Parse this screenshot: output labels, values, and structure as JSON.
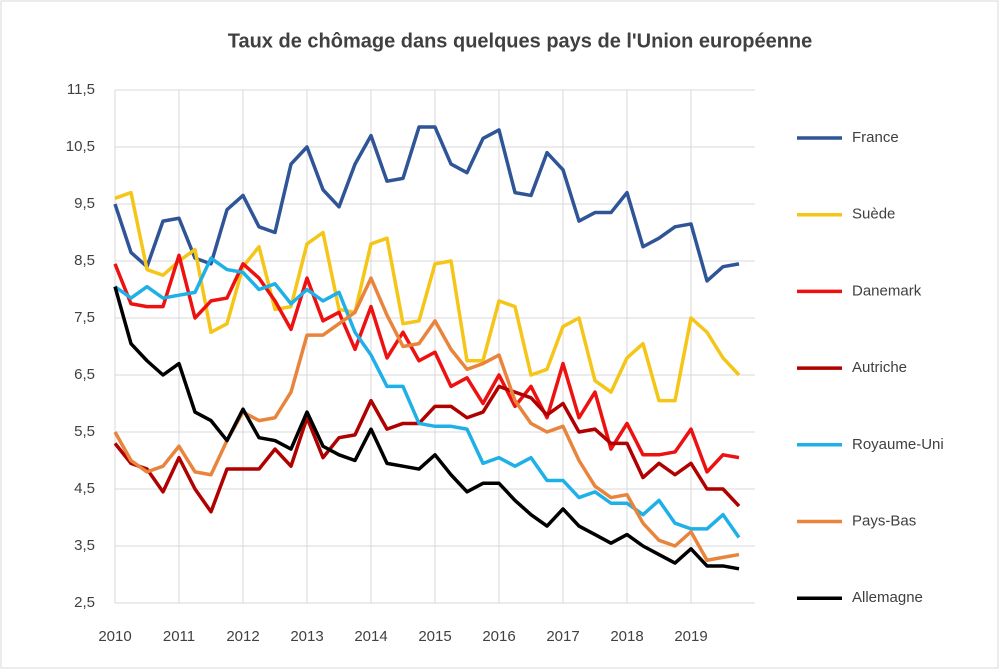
{
  "chart_data": {
    "type": "line",
    "title": "Taux de chômage dans quelques pays de l'Union européenne",
    "x": [
      2010,
      2010.25,
      2010.5,
      2010.75,
      2011,
      2011.25,
      2011.5,
      2011.75,
      2012,
      2012.25,
      2012.5,
      2012.75,
      2013,
      2013.25,
      2013.5,
      2013.75,
      2014,
      2014.25,
      2014.5,
      2014.75,
      2015,
      2015.25,
      2015.5,
      2015.75,
      2016,
      2016.25,
      2016.5,
      2016.75,
      2017,
      2017.25,
      2017.5,
      2017.75,
      2018,
      2018.25,
      2018.5,
      2018.75,
      2019,
      2019.25,
      2019.5,
      2019.75
    ],
    "xlim": [
      2010,
      2020
    ],
    "xticks": [
      2010,
      2011,
      2012,
      2013,
      2014,
      2015,
      2016,
      2017,
      2018,
      2019
    ],
    "ylim": [
      2.5,
      11.5
    ],
    "yticks": [
      {
        "value": 2.5,
        "label": "2,5"
      },
      {
        "value": 3.5,
        "label": "3,5"
      },
      {
        "value": 4.5,
        "label": "4,5"
      },
      {
        "value": 5.5,
        "label": "5,5"
      },
      {
        "value": 6.5,
        "label": "6,5"
      },
      {
        "value": 7.5,
        "label": "7,5"
      },
      {
        "value": 8.5,
        "label": "8,5"
      },
      {
        "value": 9.5,
        "label": "9,5"
      },
      {
        "value": 10.5,
        "label": "10,5"
      },
      {
        "value": 11.5,
        "label": "11,5"
      }
    ],
    "grid": true,
    "legend": "right",
    "series": [
      {
        "name": "France",
        "color": "#2f5597",
        "values": [
          9.5,
          8.65,
          8.4,
          9.2,
          9.25,
          8.55,
          8.45,
          9.4,
          9.65,
          9.1,
          9.0,
          10.2,
          10.5,
          9.75,
          9.45,
          10.2,
          10.7,
          9.9,
          9.95,
          10.85,
          10.85,
          10.2,
          10.05,
          10.65,
          10.8,
          9.7,
          9.65,
          10.4,
          10.1,
          9.2,
          9.35,
          9.35,
          9.7,
          8.75,
          8.9,
          9.1,
          9.15,
          8.15,
          8.4,
          8.45
        ]
      },
      {
        "name": "Suède",
        "color": "#f5c518",
        "values": [
          9.6,
          9.7,
          8.35,
          8.25,
          8.5,
          8.7,
          7.25,
          7.4,
          8.4,
          8.75,
          7.65,
          7.7,
          8.8,
          9.0,
          7.65,
          7.6,
          8.8,
          8.9,
          7.4,
          7.45,
          8.45,
          8.5,
          6.75,
          6.75,
          7.8,
          7.7,
          6.5,
          6.6,
          7.35,
          7.5,
          6.4,
          6.2,
          6.8,
          7.05,
          6.05,
          6.05,
          7.5,
          7.25,
          6.8,
          6.5
        ]
      },
      {
        "name": "Danemark",
        "color": "#ee1111",
        "values": [
          8.45,
          7.75,
          7.7,
          7.7,
          8.6,
          7.5,
          7.8,
          7.85,
          8.45,
          8.2,
          7.8,
          7.3,
          8.2,
          7.45,
          7.6,
          6.95,
          7.7,
          6.8,
          7.25,
          6.75,
          6.9,
          6.3,
          6.45,
          6.0,
          6.5,
          5.95,
          6.3,
          5.75,
          6.7,
          5.75,
          6.2,
          5.2,
          5.65,
          5.1,
          5.1,
          5.15,
          5.55,
          4.8,
          5.1,
          5.05
        ]
      },
      {
        "name": "Autriche",
        "color": "#b00000",
        "values": [
          5.3,
          4.95,
          4.85,
          4.45,
          5.05,
          4.5,
          4.1,
          4.85,
          4.85,
          4.85,
          5.2,
          4.9,
          5.75,
          5.05,
          5.4,
          5.45,
          6.05,
          5.55,
          5.65,
          5.65,
          5.95,
          5.95,
          5.75,
          5.85,
          6.3,
          6.2,
          6.1,
          5.8,
          6.0,
          5.5,
          5.55,
          5.3,
          5.3,
          4.7,
          4.95,
          4.75,
          4.95,
          4.5,
          4.5,
          4.2
        ]
      },
      {
        "name": "Royaume-Uni",
        "color": "#1fb0e8",
        "values": [
          8.05,
          7.85,
          8.05,
          7.85,
          7.9,
          7.95,
          8.55,
          8.35,
          8.3,
          8.0,
          8.1,
          7.75,
          8.0,
          7.8,
          7.95,
          7.25,
          6.85,
          6.3,
          6.3,
          5.65,
          5.6,
          5.6,
          5.55,
          4.95,
          5.05,
          4.9,
          5.05,
          4.65,
          4.65,
          4.35,
          4.45,
          4.25,
          4.25,
          4.05,
          4.3,
          3.9,
          3.8,
          3.8,
          4.05,
          3.65
        ]
      },
      {
        "name": "Pays-Bas",
        "color": "#e8843c",
        "values": [
          5.5,
          5.0,
          4.8,
          4.9,
          5.25,
          4.8,
          4.75,
          5.35,
          5.85,
          5.7,
          5.75,
          6.2,
          7.2,
          7.2,
          7.4,
          7.6,
          8.2,
          7.55,
          7.0,
          7.05,
          7.45,
          6.95,
          6.6,
          6.7,
          6.85,
          6.05,
          5.65,
          5.5,
          5.6,
          5.0,
          4.55,
          4.35,
          4.4,
          3.9,
          3.6,
          3.5,
          3.75,
          3.25,
          3.3,
          3.35
        ]
      },
      {
        "name": "Allemagne",
        "color": "#000000",
        "values": [
          8.05,
          7.05,
          6.75,
          6.5,
          6.7,
          5.85,
          5.7,
          5.35,
          5.9,
          5.4,
          5.35,
          5.2,
          5.85,
          5.25,
          5.1,
          5.0,
          5.55,
          4.95,
          4.9,
          4.85,
          5.1,
          4.75,
          4.45,
          4.6,
          4.6,
          4.3,
          4.05,
          3.85,
          4.15,
          3.85,
          3.7,
          3.55,
          3.7,
          3.5,
          3.35,
          3.2,
          3.45,
          3.15,
          3.15,
          3.1
        ]
      }
    ]
  }
}
